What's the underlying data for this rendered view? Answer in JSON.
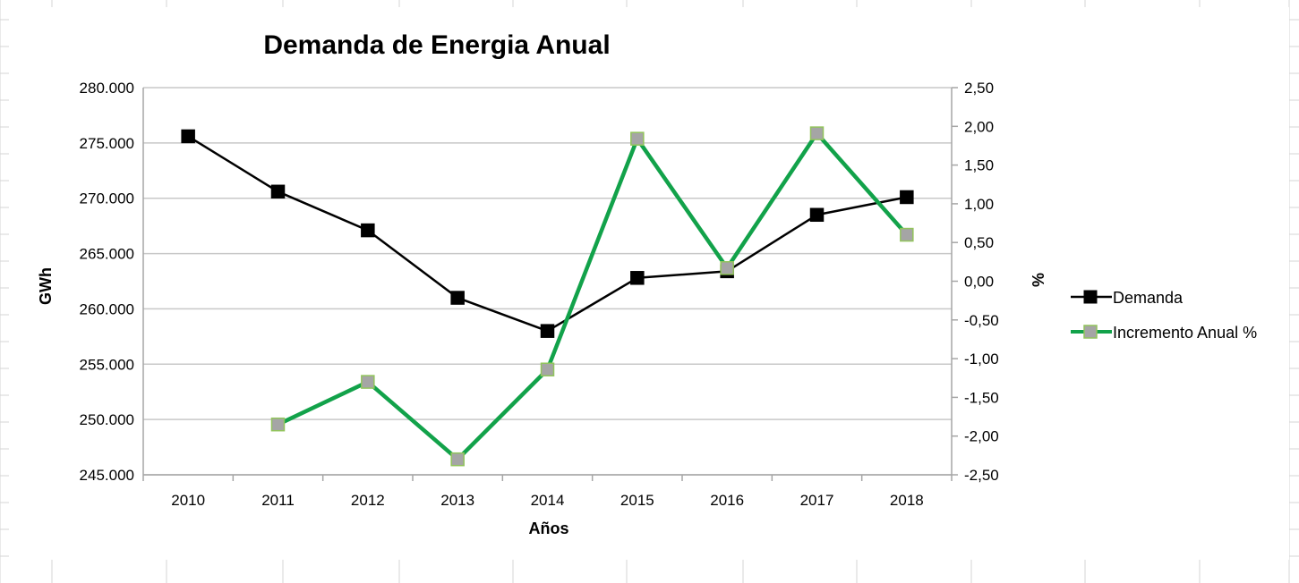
{
  "chart_data": {
    "type": "line",
    "title": "Demanda de Energia Anual",
    "xlabel": "Años",
    "ylabel_left": "GWh",
    "ylabel_right": "%",
    "categories": [
      "2010",
      "2011",
      "2012",
      "2013",
      "2014",
      "2015",
      "2016",
      "2017",
      "2018"
    ],
    "y_left": {
      "min": 245000,
      "max": 280000,
      "step": 5000,
      "ticks": [
        "245.000",
        "250.000",
        "255.000",
        "260.000",
        "265.000",
        "270.000",
        "275.000",
        "280.000"
      ]
    },
    "y_right": {
      "min": -2.5,
      "max": 2.5,
      "step": 0.5,
      "ticks": [
        "-2,50",
        "-2,00",
        "-1,50",
        "-1,00",
        "-0,50",
        "0,00",
        "0,50",
        "1,00",
        "1,50",
        "2,00",
        "2,50"
      ]
    },
    "grid": "horizontal",
    "legend_position": "right",
    "series": [
      {
        "name": "Demanda",
        "axis": "left",
        "color": "#000000",
        "marker_fill": "#000000",
        "marker_stroke": "#000000",
        "values": [
          275600,
          270600,
          267100,
          261000,
          258000,
          262800,
          263400,
          268500,
          270100
        ]
      },
      {
        "name": "Incremento Anual %",
        "axis": "right",
        "color": "#12a24a",
        "marker_fill": "#a5a5a5",
        "marker_stroke": "#92c45c",
        "values": [
          null,
          -1.85,
          -1.3,
          -2.3,
          -1.14,
          1.84,
          0.17,
          1.91,
          0.6
        ]
      }
    ]
  }
}
